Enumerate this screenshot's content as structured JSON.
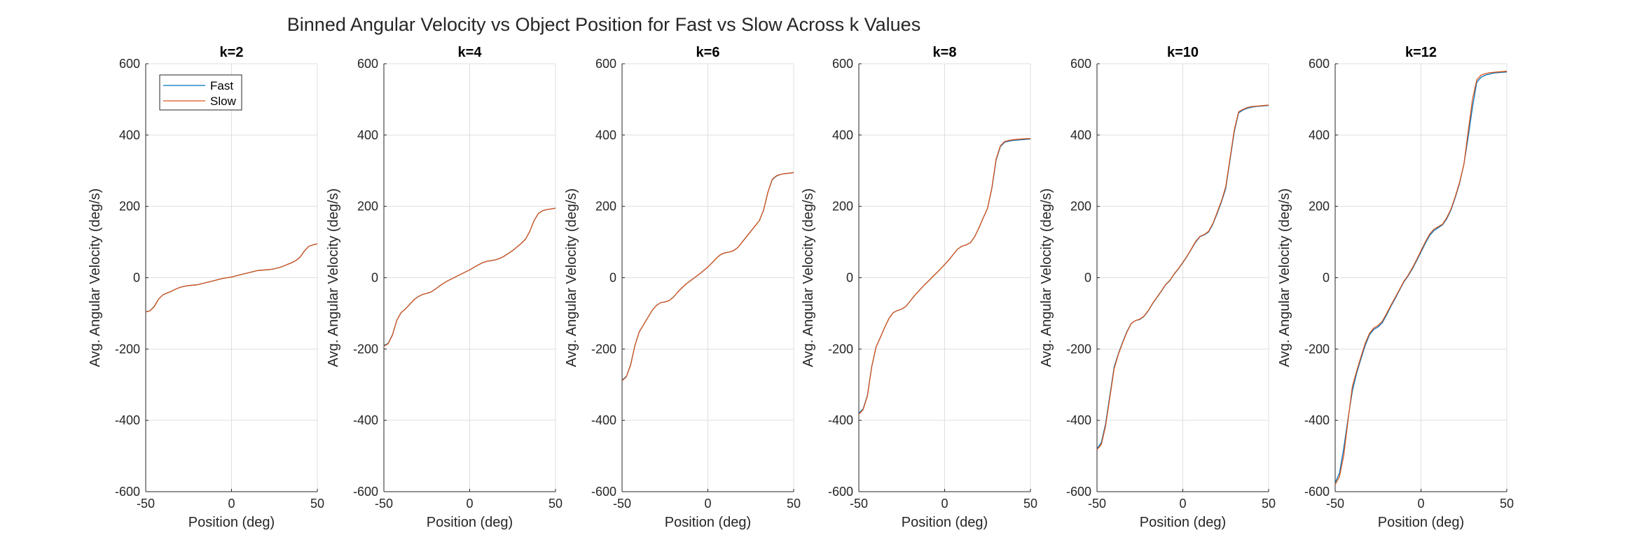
{
  "chart_data": {
    "type": "line",
    "title": "Binned Angular Velocity vs Object Position for Fast vs Slow Across k Values",
    "xlabel": "Position (deg)",
    "ylabel": "Avg. Angular Velocity (deg/s)",
    "xlim": [
      -50,
      50
    ],
    "ylim": [
      -600,
      600
    ],
    "xticks": [
      "-50",
      "0",
      "50"
    ],
    "yticks": [
      "-600",
      "-400",
      "-200",
      "0",
      "200",
      "400",
      "600"
    ],
    "grid": true,
    "legend": {
      "location": "top-left",
      "entries": [
        "Fast",
        "Slow"
      ]
    },
    "colors": {
      "Fast": "#0072BD",
      "Slow": "#D95319"
    },
    "x": [
      -50,
      -47.5,
      -45,
      -42.5,
      -40,
      -37.5,
      -35,
      -32.5,
      -30,
      -27.5,
      -25,
      -22.5,
      -20,
      -17.5,
      -15,
      -12.5,
      -10,
      -7.5,
      -5,
      -2.5,
      0,
      2.5,
      5,
      7.5,
      10,
      12.5,
      15,
      17.5,
      20,
      22.5,
      25,
      27.5,
      30,
      32.5,
      35,
      37.5,
      40,
      42.5,
      45,
      47.5,
      50
    ],
    "panels": [
      {
        "title": "k=2",
        "series": [
          {
            "name": "Fast",
            "values": [
              -95,
              -93,
              -80,
              -60,
              -48,
              -43,
              -38,
              -32,
              -27,
              -24,
              -22,
              -21,
              -20,
              -17,
              -14,
              -11,
              -8,
              -5,
              -2,
              0,
              2,
              5,
              8,
              11,
              14,
              17,
              20,
              21,
              22,
              23,
              25,
              28,
              32,
              37,
              42,
              48,
              58,
              75,
              88,
              92,
              95
            ]
          },
          {
            "name": "Slow",
            "values": [
              -96,
              -93,
              -81,
              -60,
              -48,
              -43,
              -38,
              -32,
              -27,
              -24,
              -22,
              -21,
              -20,
              -17,
              -14,
              -11,
              -8,
              -5,
              -2,
              0,
              2,
              5,
              8,
              11,
              14,
              17,
              20,
              21,
              22,
              23,
              25,
              28,
              32,
              37,
              42,
              48,
              58,
              75,
              88,
              92,
              95
            ]
          }
        ]
      },
      {
        "title": "k=4",
        "series": [
          {
            "name": "Fast",
            "values": [
              -190,
              -184,
              -160,
              -120,
              -98,
              -88,
              -75,
              -62,
              -53,
              -47,
              -44,
              -40,
              -32,
              -23,
              -15,
              -8,
              -2,
              4,
              10,
              16,
              22,
              29,
              36,
              42,
              46,
              48,
              50,
              54,
              60,
              68,
              76,
              86,
              96,
              108,
              130,
              160,
              180,
              188,
              191,
              193,
              195
            ]
          },
          {
            "name": "Slow",
            "values": [
              -192,
              -185,
              -161,
              -120,
              -98,
              -88,
              -75,
              -62,
              -53,
              -47,
              -44,
              -40,
              -32,
              -23,
              -15,
              -8,
              -2,
              4,
              10,
              16,
              22,
              29,
              36,
              42,
              46,
              48,
              50,
              54,
              60,
              68,
              76,
              86,
              96,
              108,
              130,
              160,
              180,
              188,
              191,
              193,
              195
            ]
          }
        ]
      },
      {
        "title": "k=6",
        "series": [
          {
            "name": "Fast",
            "values": [
              -287,
              -277,
              -244,
              -190,
              -152,
              -132,
              -112,
              -92,
              -78,
              -70,
              -68,
              -64,
              -54,
              -40,
              -28,
              -17,
              -8,
              1,
              10,
              20,
              30,
              42,
              55,
              65,
              70,
              72,
              76,
              85,
              100,
              115,
              130,
              145,
              160,
              190,
              240,
              275,
              285,
              290,
              292,
              293,
              295
            ]
          },
          {
            "name": "Slow",
            "values": [
              -289,
              -278,
              -245,
              -190,
              -152,
              -132,
              -112,
              -92,
              -78,
              -70,
              -68,
              -64,
              -54,
              -40,
              -28,
              -17,
              -8,
              1,
              10,
              20,
              30,
              42,
              55,
              65,
              70,
              72,
              76,
              85,
              100,
              115,
              130,
              145,
              160,
              190,
              240,
              276,
              286,
              290,
              292,
              293,
              295
            ]
          }
        ]
      },
      {
        "title": "k=8",
        "series": [
          {
            "name": "Fast",
            "values": [
              -380,
              -368,
              -330,
              -250,
              -195,
              -168,
              -140,
              -115,
              -98,
              -92,
              -88,
              -80,
              -65,
              -50,
              -37,
              -24,
              -12,
              0,
              12,
              24,
              37,
              50,
              65,
              80,
              88,
              92,
              98,
              115,
              140,
              168,
              195,
              250,
              330,
              368,
              380,
              383,
              385,
              386,
              387,
              388,
              389
            ]
          },
          {
            "name": "Slow",
            "values": [
              -383,
              -370,
              -332,
              -250,
              -195,
              -168,
              -140,
              -115,
              -98,
              -92,
              -88,
              -80,
              -65,
              -50,
              -37,
              -24,
              -12,
              0,
              12,
              24,
              37,
              50,
              65,
              80,
              88,
              92,
              98,
              115,
              140,
              168,
              195,
              252,
              333,
              370,
              382,
              385,
              387,
              388,
              389,
              390,
              390
            ]
          }
        ]
      },
      {
        "title": "k=10",
        "series": [
          {
            "name": "Fast",
            "values": [
              -480,
              -462,
              -410,
              -330,
              -250,
              -212,
              -180,
              -150,
              -128,
              -120,
              -117,
              -108,
              -92,
              -72,
              -55,
              -38,
              -20,
              -8,
              10,
              25,
              42,
              60,
              80,
              100,
              115,
              120,
              128,
              150,
              180,
              212,
              250,
              330,
              410,
              462,
              470,
              475,
              478,
              480,
              481,
              482,
              483
            ]
          },
          {
            "name": "Slow",
            "values": [
              -482,
              -468,
              -416,
              -336,
              -255,
              -214,
              -182,
              -152,
              -128,
              -120,
              -116,
              -107,
              -91,
              -71,
              -54,
              -37,
              -19,
              -7,
              11,
              26,
              43,
              61,
              81,
              102,
              116,
              121,
              130,
              152,
              183,
              215,
              255,
              335,
              415,
              465,
              472,
              477,
              480,
              481,
              482,
              483,
              484
            ]
          }
        ]
      },
      {
        "title": "k=12",
        "series": [
          {
            "name": "Fast",
            "values": [
              -575,
              -548,
              -478,
              -395,
              -318,
              -268,
              -228,
              -190,
              -160,
              -145,
              -138,
              -126,
              -104,
              -80,
              -58,
              -35,
              -12,
              5,
              25,
              48,
              72,
              96,
              118,
              132,
              140,
              148,
              165,
              190,
              225,
              265,
              318,
              395,
              478,
              548,
              562,
              568,
              571,
              574,
              575,
              576,
              577
            ]
          },
          {
            "name": "Slow",
            "values": [
              -580,
              -558,
              -498,
              -400,
              -305,
              -262,
              -222,
              -184,
              -156,
              -141,
              -134,
              -122,
              -100,
              -77,
              -55,
              -33,
              -10,
              7,
              28,
              51,
              76,
              100,
              122,
              136,
              143,
              150,
              168,
              193,
              228,
              268,
              318,
              410,
              500,
              555,
              568,
              572,
              575,
              576,
              577,
              578,
              579
            ]
          }
        ]
      }
    ]
  }
}
